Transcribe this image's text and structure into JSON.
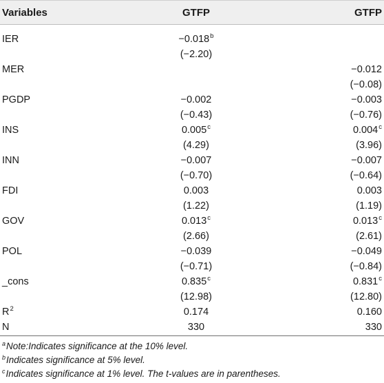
{
  "table": {
    "headers": [
      "Variables",
      "GTFP",
      "GTFP"
    ],
    "rows": [
      {
        "label": "IER",
        "label_sup": "",
        "c1": "−0.018",
        "c1_sup": "b",
        "c2": "",
        "c2_sup": ""
      },
      {
        "label": "",
        "label_sup": "",
        "c1": "(−2.20)",
        "c1_sup": "",
        "c2": "",
        "c2_sup": ""
      },
      {
        "label": "MER",
        "label_sup": "",
        "c1": "",
        "c1_sup": "",
        "c2": "−0.012",
        "c2_sup": ""
      },
      {
        "label": "",
        "label_sup": "",
        "c1": "",
        "c1_sup": "",
        "c2": "(−0.08)",
        "c2_sup": ""
      },
      {
        "label": "PGDP",
        "label_sup": "",
        "c1": "−0.002",
        "c1_sup": "",
        "c2": "−0.003",
        "c2_sup": ""
      },
      {
        "label": "",
        "label_sup": "",
        "c1": "(−0.43)",
        "c1_sup": "",
        "c2": "(−0.76)",
        "c2_sup": ""
      },
      {
        "label": "INS",
        "label_sup": "",
        "c1": "0.005",
        "c1_sup": "c",
        "c2": "0.004",
        "c2_sup": "c"
      },
      {
        "label": "",
        "label_sup": "",
        "c1": "(4.29)",
        "c1_sup": "",
        "c2": "(3.96)",
        "c2_sup": ""
      },
      {
        "label": "INN",
        "label_sup": "",
        "c1": "−0.007",
        "c1_sup": "",
        "c2": "−0.007",
        "c2_sup": ""
      },
      {
        "label": "",
        "label_sup": "",
        "c1": "(−0.70)",
        "c1_sup": "",
        "c2": "(−0.64)",
        "c2_sup": ""
      },
      {
        "label": "FDI",
        "label_sup": "",
        "c1": "0.003",
        "c1_sup": "",
        "c2": "0.003",
        "c2_sup": ""
      },
      {
        "label": "",
        "label_sup": "",
        "c1": "(1.22)",
        "c1_sup": "",
        "c2": "(1.19)",
        "c2_sup": ""
      },
      {
        "label": "GOV",
        "label_sup": "",
        "c1": "0.013",
        "c1_sup": "c",
        "c2": "0.013",
        "c2_sup": "c"
      },
      {
        "label": "",
        "label_sup": "",
        "c1": "(2.66)",
        "c1_sup": "",
        "c2": "(2.61)",
        "c2_sup": ""
      },
      {
        "label": "POL",
        "label_sup": "",
        "c1": "−0.039",
        "c1_sup": "",
        "c2": "−0.049",
        "c2_sup": ""
      },
      {
        "label": "",
        "label_sup": "",
        "c1": "(−0.71)",
        "c1_sup": "",
        "c2": "(−0.84)",
        "c2_sup": ""
      },
      {
        "label": "_cons",
        "label_sup": "",
        "c1": "0.835",
        "c1_sup": "c",
        "c2": "0.831",
        "c2_sup": "c"
      },
      {
        "label": "",
        "label_sup": "",
        "c1": "(12.98)",
        "c1_sup": "",
        "c2": "(12.80)",
        "c2_sup": ""
      },
      {
        "label": "R",
        "label_sup": "2",
        "c1": "0.174",
        "c1_sup": "",
        "c2": "0.160",
        "c2_sup": ""
      },
      {
        "label": "N",
        "label_sup": "",
        "c1": "330",
        "c1_sup": "",
        "c2": "330",
        "c2_sup": ""
      }
    ]
  },
  "notes": [
    {
      "marker": "a",
      "text": "Note:Indicates significance at the 10% level."
    },
    {
      "marker": "b",
      "text": "Indicates significance at 5% level."
    },
    {
      "marker": "c",
      "text": "Indicates significance at 1% level. The t-values are in parentheses."
    }
  ]
}
